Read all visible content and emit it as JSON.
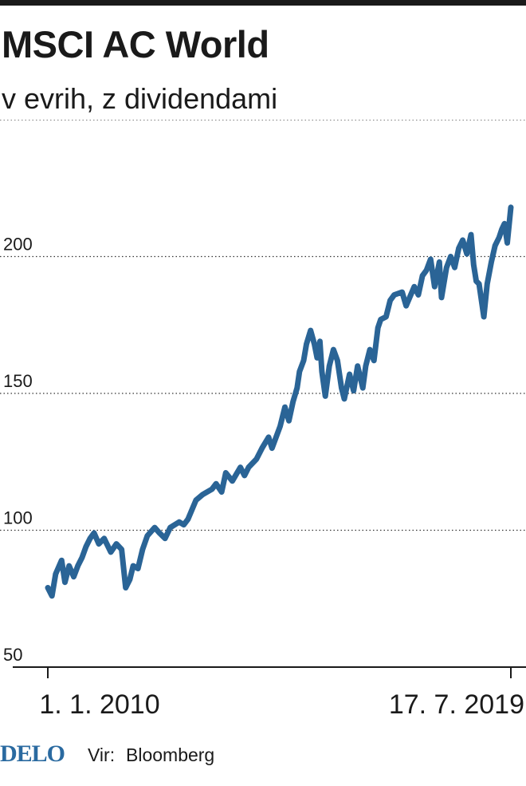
{
  "chart_data": {
    "type": "line",
    "title": "MSCI AC World",
    "subtitle": "v evrih, z dividendami",
    "xlabel": "",
    "ylabel": "",
    "ylim": [
      50,
      250
    ],
    "yticks": [
      50,
      100,
      150,
      200
    ],
    "xtick_labels": [
      "1. 1. 2010",
      "17. 7. 2019"
    ],
    "x_start": "2010-01-01",
    "x_end": "2019-07-17",
    "line_color": "#2a6496",
    "grid": "dotted horizontal",
    "series": [
      {
        "x": [
          "2010-01-01",
          "2010-02-01",
          "2010-03-01",
          "2010-04-15",
          "2010-05-10",
          "2010-06-10",
          "2010-07-15",
          "2010-08-15",
          "2010-09-15",
          "2010-10-15",
          "2010-11-15",
          "2010-12-15",
          "2011-01-20",
          "2011-03-01",
          "2011-04-20",
          "2011-06-01",
          "2011-07-10",
          "2011-08-10",
          "2011-09-10",
          "2011-10-05",
          "2011-11-10",
          "2011-12-15",
          "2012-01-20",
          "2012-03-15",
          "2012-04-20",
          "2012-06-01",
          "2012-07-10",
          "2012-09-15",
          "2012-10-20",
          "2012-11-20",
          "2013-01-20",
          "2013-03-10",
          "2013-05-20",
          "2013-06-20",
          "2013-08-01",
          "2013-09-01",
          "2013-10-20",
          "2013-12-20",
          "2014-01-20",
          "2014-02-20",
          "2014-04-20",
          "2014-06-01",
          "2014-07-20",
          "2014-08-15",
          "2014-10-15",
          "2014-11-20",
          "2014-12-20",
          "2015-01-20",
          "2015-02-20",
          "2015-03-10",
          "2015-04-10",
          "2015-05-01",
          "2015-06-01",
          "2015-06-30",
          "2015-07-20",
          "2015-08-10",
          "2015-08-25",
          "2015-09-20",
          "2015-10-20",
          "2015-11-20",
          "2015-12-20",
          "2016-01-20",
          "2016-02-10",
          "2016-03-20",
          "2016-04-20",
          "2016-05-20",
          "2016-06-28",
          "2016-07-20",
          "2016-08-20",
          "2016-09-20",
          "2016-10-20",
          "2016-11-10",
          "2016-12-20",
          "2017-01-20",
          "2017-02-20",
          "2017-04-20",
          "2017-05-20",
          "2017-07-20",
          "2017-08-20",
          "2017-09-20",
          "2017-10-20",
          "2017-11-20",
          "2017-12-20",
          "2018-01-25",
          "2018-02-10",
          "2018-03-20",
          "2018-04-20",
          "2018-05-20",
          "2018-06-20",
          "2018-07-20",
          "2018-08-20",
          "2018-09-20",
          "2018-10-10",
          "2018-10-30",
          "2018-11-20",
          "2018-12-26",
          "2019-01-20",
          "2019-02-20",
          "2019-03-20",
          "2019-04-20",
          "2019-05-10",
          "2019-05-30",
          "2019-06-20",
          "2019-07-17"
        ],
        "y": [
          79,
          76,
          84,
          89,
          81,
          87,
          83,
          87,
          90,
          94,
          97,
          99,
          95,
          97,
          92,
          95,
          93,
          79,
          82,
          87,
          86,
          93,
          98,
          101,
          99,
          97,
          101,
          103,
          102,
          104,
          111,
          113,
          115,
          117,
          114,
          121,
          118,
          123,
          120,
          123,
          126,
          130,
          134,
          130,
          138,
          145,
          140,
          147,
          152,
          158,
          162,
          168,
          173,
          168,
          163,
          169,
          158,
          149,
          160,
          166,
          162,
          152,
          148,
          157,
          151,
          160,
          152,
          160,
          166,
          162,
          174,
          177,
          178,
          184,
          186,
          187,
          182,
          189,
          186,
          193,
          195,
          199,
          189,
          198,
          185,
          196,
          200,
          196,
          203,
          206,
          201,
          208,
          197,
          191,
          190,
          178,
          190,
          198,
          204,
          207,
          210,
          212,
          205,
          218
        ]
      }
    ]
  },
  "footer": {
    "logo": "DELO",
    "source_label": "Vir:",
    "source_name": "Bloomberg"
  }
}
